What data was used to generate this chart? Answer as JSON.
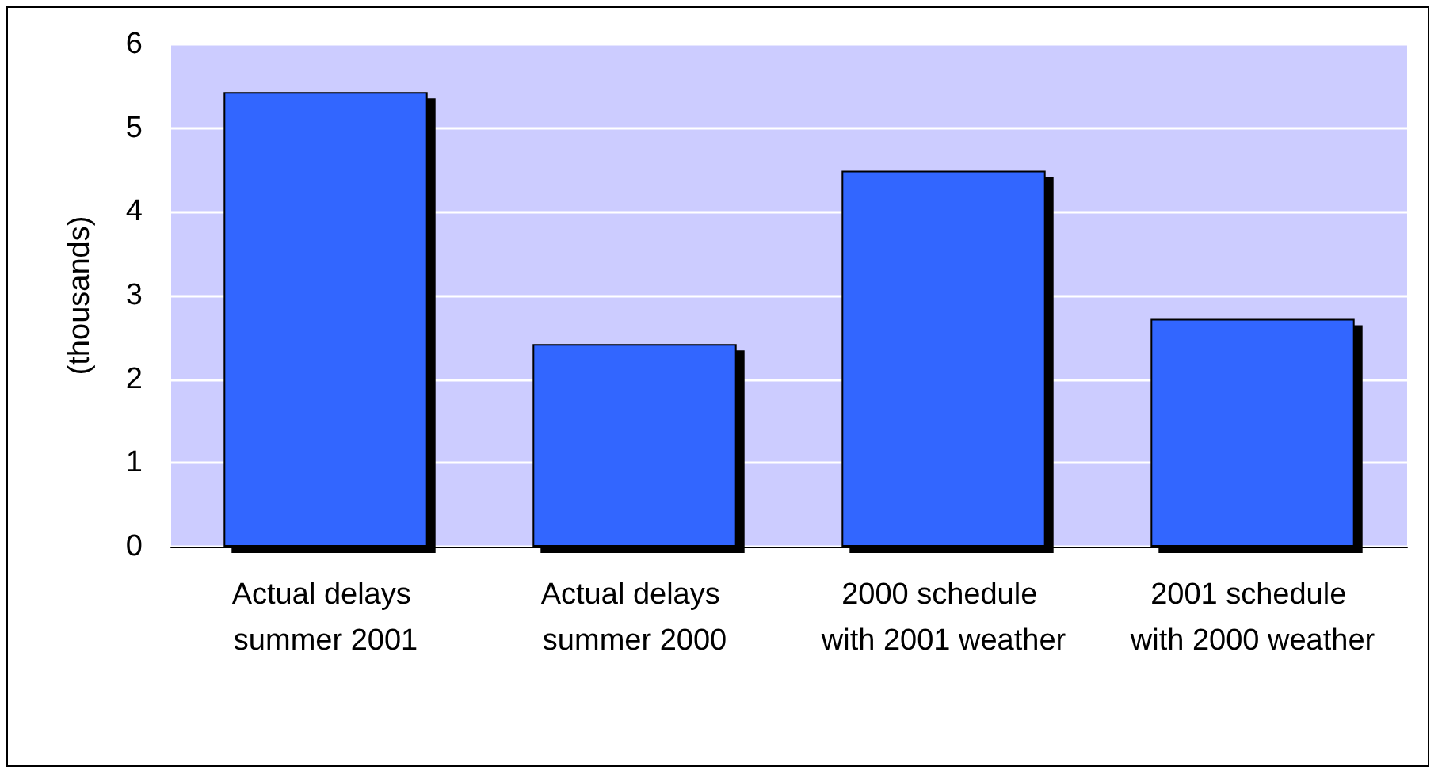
{
  "chart_data": {
    "type": "bar",
    "ylabel": "(thousands)",
    "categories": [
      "Actual delays summer 2001",
      "Actual delays summer 2000",
      "2000 schedule with 2001 weather",
      "2001 schedule with 2000 weather"
    ],
    "values": [
      5.43,
      2.42,
      4.49,
      2.72
    ],
    "color": "#3366ff",
    "ylim": [
      0,
      6
    ],
    "yticks": [
      0,
      1,
      2,
      3,
      4,
      5,
      6
    ],
    "grid": "y"
  }
}
